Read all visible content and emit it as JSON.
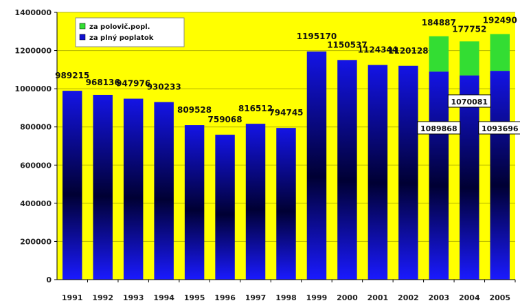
{
  "chart_data": {
    "type": "bar",
    "stacked": true,
    "categories": [
      "1991",
      "1992",
      "1993",
      "1994",
      "1995",
      "1996",
      "1997",
      "1998",
      "1999",
      "2000",
      "2001",
      "2002",
      "2003",
      "2004",
      "2005"
    ],
    "series": [
      {
        "name": "za plný poplatok",
        "color": "#1010d0",
        "values": [
          989215,
          968136,
          947976,
          930233,
          809528,
          759068,
          816512,
          794745,
          1195170,
          1150537,
          1124344,
          1120128,
          1089868,
          1070081,
          1093696
        ],
        "labels": [
          "989215",
          "968136",
          "947976",
          "930233",
          "809528",
          "759068",
          "816512",
          "794745",
          "1195170",
          "1150537",
          "1124344",
          "1120128",
          "1089868",
          "1070081",
          "1093696"
        ]
      },
      {
        "name": "za polovič.popl.",
        "color": "#33dd33",
        "values": [
          0,
          0,
          0,
          0,
          0,
          0,
          0,
          0,
          0,
          0,
          0,
          0,
          184887,
          177752,
          192490
        ],
        "labels": [
          "",
          "",
          "",
          "",
          "",
          "",
          "",
          "",
          "",
          "",
          "",
          "",
          "184887",
          "177752",
          "192490"
        ]
      }
    ],
    "y_ticks": [
      "0",
      "200000",
      "400000",
      "600000",
      "800000",
      "1000000",
      "1200000",
      "1400000"
    ],
    "ylim": [
      0,
      1400000
    ],
    "grid": true,
    "legend_position": "top-left",
    "plot_background": "#ffff00",
    "title": "",
    "xlabel": "",
    "ylabel": ""
  }
}
